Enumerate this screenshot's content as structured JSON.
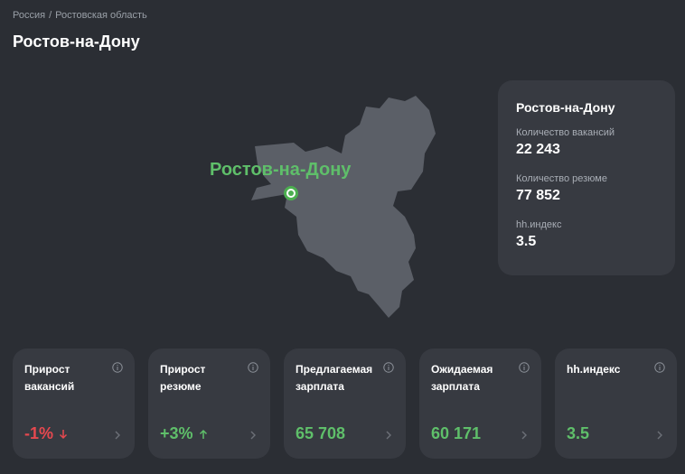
{
  "breadcrumb": {
    "items": [
      "Россия",
      "Ростовская область"
    ],
    "separator": "/"
  },
  "page_title": "Ростов-на-Дону",
  "map": {
    "city_label": "Ростов-на-Дону"
  },
  "info_card": {
    "title": "Ростов-на-Дону",
    "metrics": [
      {
        "label": "Количество вакансий",
        "value": "22 243"
      },
      {
        "label": "Количество резюме",
        "value": "77 852"
      },
      {
        "label": "hh.индекс",
        "value": "3.5"
      }
    ]
  },
  "stats": [
    {
      "label": "Прирост\nвакансий",
      "value": "-1%",
      "trend": "down",
      "color": "#e6484f"
    },
    {
      "label": "Прирост\nрезюме",
      "value": "+3%",
      "trend": "up",
      "color": "#5fbf6a"
    },
    {
      "label": "Предлагаемая\nзарплата",
      "value": "65 708",
      "color": "#5fbf6a"
    },
    {
      "label": "Ожидаемая\nзарплата",
      "value": "60 171",
      "color": "#5fbf6a"
    },
    {
      "label": "hh.индекс",
      "value": "3.5",
      "color": "#5fbf6a"
    }
  ],
  "icons": {
    "info": "info-icon",
    "chevron": "chevron-right-icon",
    "down": "arrow-down-icon",
    "up": "arrow-up-icon"
  }
}
